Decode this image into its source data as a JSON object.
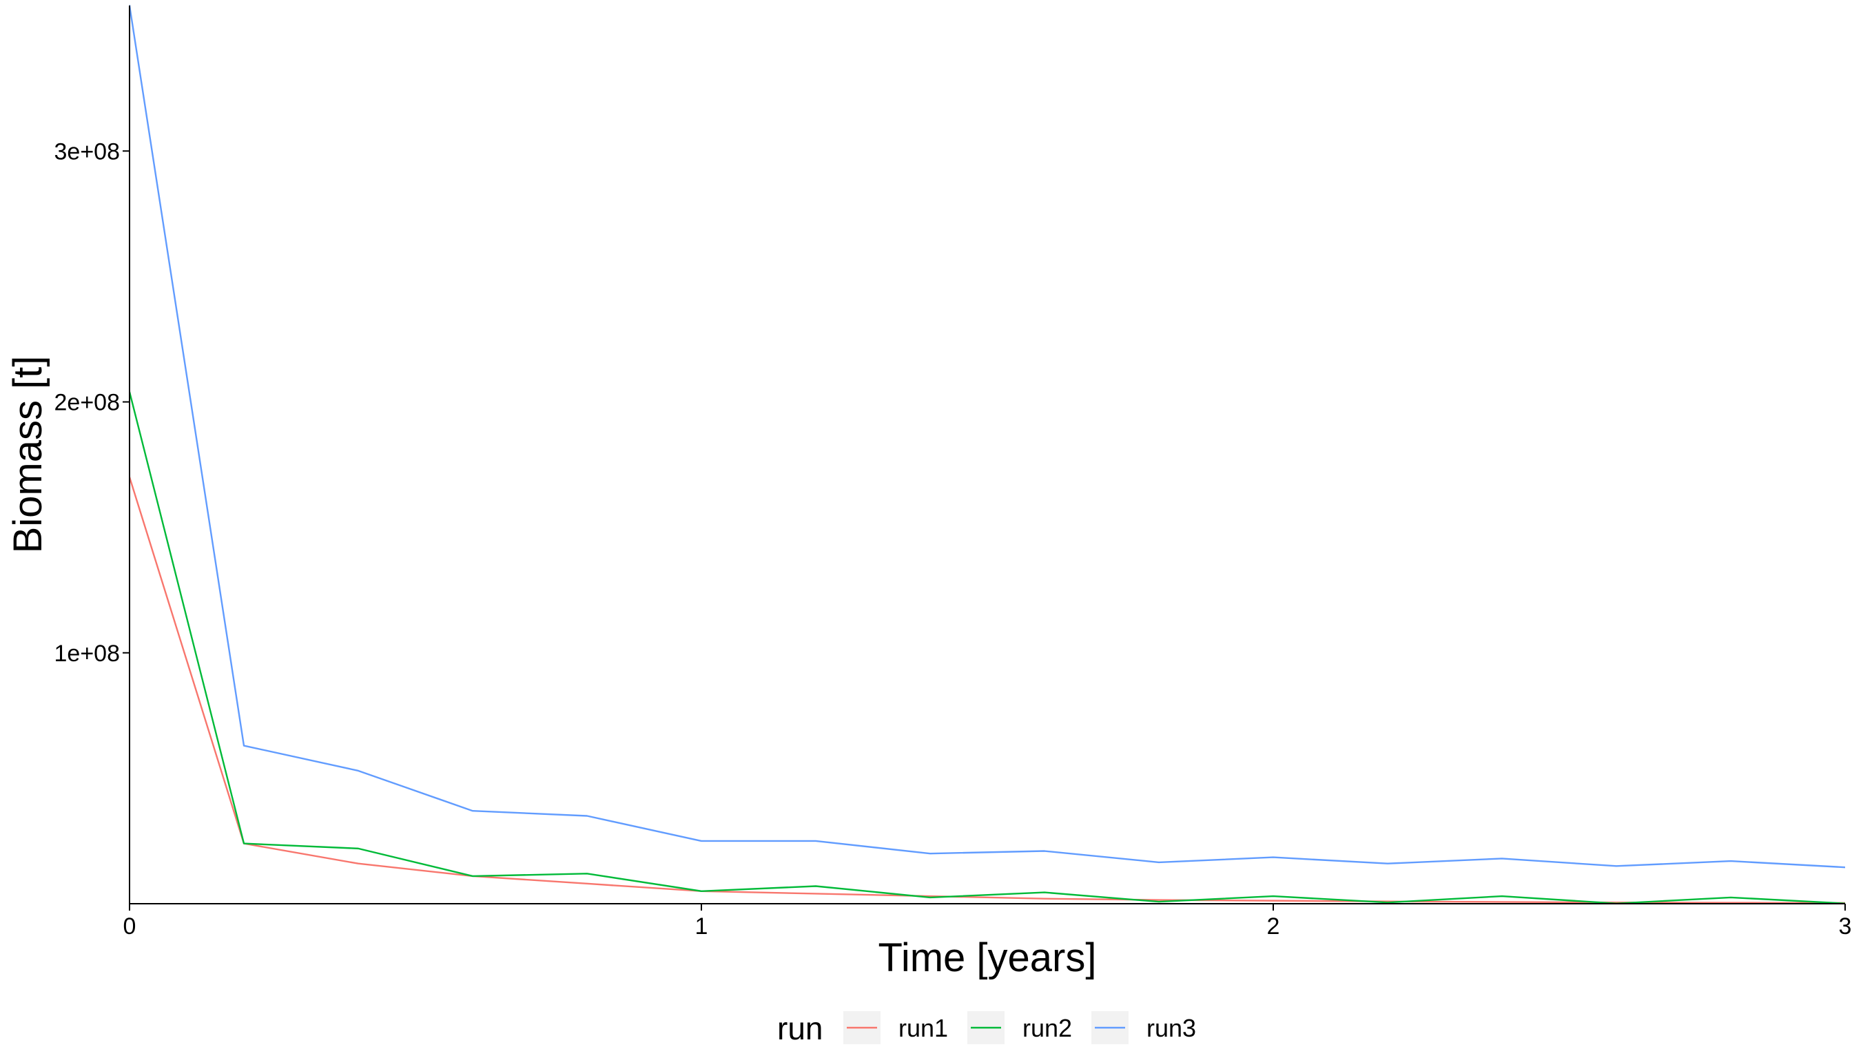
{
  "chart_data": {
    "type": "line",
    "title": "",
    "xlabel": "Time [years]",
    "ylabel": "Biomass [t]",
    "xlim": [
      0,
      3
    ],
    "ylim": [
      0,
      358000000
    ],
    "x_ticks": [
      {
        "value": 0,
        "label": "0"
      },
      {
        "value": 1,
        "label": "1"
      },
      {
        "value": 2,
        "label": "2"
      },
      {
        "value": 3,
        "label": "3"
      }
    ],
    "y_ticks": [
      {
        "value": 100000000,
        "label": "1e+08"
      },
      {
        "value": 200000000,
        "label": "2e+08"
      },
      {
        "value": 300000000,
        "label": "3e+08"
      }
    ],
    "grid": false,
    "legend": {
      "title": "run",
      "position": "bottom"
    },
    "x": [
      0,
      0.2,
      0.4,
      0.6,
      0.8,
      1.0,
      1.2,
      1.4,
      1.6,
      1.8,
      2.0,
      2.2,
      2.4,
      2.6,
      2.8,
      3.0
    ],
    "series": [
      {
        "name": "run1",
        "color": "#F8766D",
        "values": [
          170000000,
          24000000,
          16000000,
          11000000,
          8000000,
          5000000,
          4000000,
          3000000,
          2000000,
          1500000,
          1200000,
          900000,
          700000,
          500000,
          400000,
          300000
        ]
      },
      {
        "name": "run2",
        "color": "#00BA38",
        "values": [
          204000000,
          24000000,
          22000000,
          11000000,
          12000000,
          5000000,
          7000000,
          2500000,
          4500000,
          800000,
          3000000,
          500000,
          3000000,
          100000,
          2500000,
          100000
        ]
      },
      {
        "name": "run3",
        "color": "#619CFF",
        "values": [
          358000000,
          63000000,
          53000000,
          37000000,
          35000000,
          25000000,
          25000000,
          20000000,
          21000000,
          16500000,
          18500000,
          16000000,
          18000000,
          15000000,
          17000000,
          14500000
        ]
      }
    ]
  }
}
